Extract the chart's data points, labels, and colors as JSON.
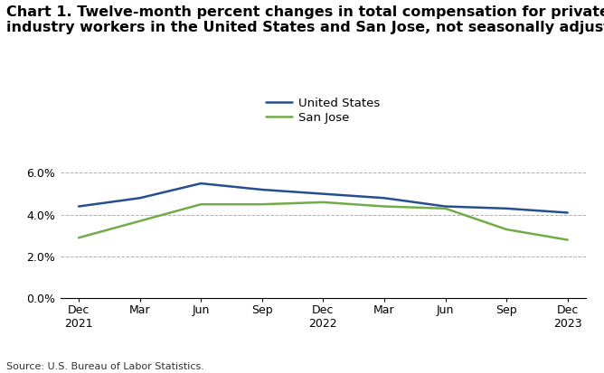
{
  "title_line1": "Chart 1. Twelve-month percent changes in total compensation for private",
  "title_line2": "industry workers in the United States and San Jose, not seasonally adjusted",
  "x_labels": [
    "Dec\n2021",
    "Mar",
    "Jun",
    "Sep",
    "Dec\n2022",
    "Mar",
    "Jun",
    "Sep",
    "Dec\n2023"
  ],
  "us_values": [
    4.4,
    4.8,
    5.5,
    5.2,
    5.0,
    4.8,
    4.4,
    4.3,
    4.1
  ],
  "sj_values": [
    2.9,
    3.7,
    4.5,
    4.5,
    4.6,
    4.4,
    4.3,
    3.3,
    2.8
  ],
  "us_color": "#254f8f",
  "sj_color": "#70ad47",
  "us_label": "United States",
  "sj_label": "San Jose",
  "ylim": [
    0.0,
    6.6
  ],
  "yticks": [
    0.0,
    2.0,
    4.0,
    6.0
  ],
  "ytick_labels": [
    "0.0%",
    "2.0%",
    "4.0%",
    "6.0%"
  ],
  "grid_color": "#b0b0b0",
  "source_text": "Source: U.S. Bureau of Labor Statistics.",
  "bg_color": "#ffffff",
  "line_width": 1.8,
  "title_fontsize": 11.5,
  "tick_fontsize": 9,
  "legend_fontsize": 9.5,
  "source_fontsize": 8
}
